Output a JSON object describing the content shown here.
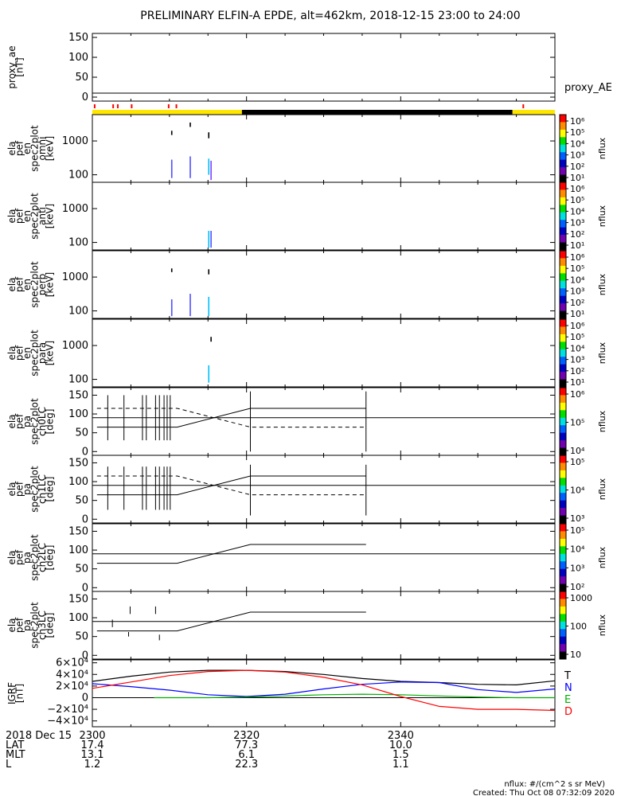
{
  "title": "PRELIMINARY ELFIN-A EPDE, alt=462km, 2018-12-15 23:00 to 24:00",
  "chart_data": {
    "type": "line",
    "time_ticks": [
      "2300",
      "2320",
      "2340"
    ],
    "ae_panel": {
      "ylabel": [
        "proxy_ae",
        "[nT]"
      ],
      "yticks": [
        "150",
        "100",
        "50",
        "0"
      ],
      "ylim": [
        -10,
        160
      ],
      "series_label": "proxy_AE",
      "value": 10,
      "red_marks_minutes": [
        0.3,
        2.7,
        3.3,
        5.1,
        9.9,
        10.9,
        55.9
      ],
      "status_bar": [
        {
          "from": 0,
          "to": 19.4,
          "color": "#ffe600"
        },
        {
          "from": 19.4,
          "to": 54.5,
          "color": "#000000"
        },
        {
          "from": 54.5,
          "to": 60,
          "color": "#ffe600"
        }
      ]
    },
    "spectrogram_panels": [
      {
        "ylabel": [
          "ela",
          "pef",
          "en",
          "spec2plot",
          "omni",
          "[keV]"
        ],
        "yticks": [
          "1000",
          "100"
        ],
        "cbar_ticks": [
          "10⁶",
          "10⁵",
          "10⁴",
          "10³",
          "10²",
          "10¹"
        ],
        "cbar_label": "nflux"
      },
      {
        "ylabel": [
          "ela",
          "pef",
          "en",
          "spec2plot",
          "anti",
          "[keV]"
        ],
        "yticks": [
          "1000",
          "100"
        ],
        "cbar_ticks": [
          "10⁶",
          "10⁵",
          "10⁴",
          "10³",
          "10²",
          "10¹"
        ],
        "cbar_label": "nflux"
      },
      {
        "ylabel": [
          "ela",
          "pef",
          "en",
          "spec2plot",
          "perp",
          "[keV]"
        ],
        "yticks": [
          "1000",
          "100"
        ],
        "cbar_ticks": [
          "10⁶",
          "10⁵",
          "10⁴",
          "10³",
          "10²",
          "10¹"
        ],
        "cbar_label": "nflux"
      },
      {
        "ylabel": [
          "ela",
          "pef",
          "en",
          "spec2plot",
          "para",
          "[keV]"
        ],
        "yticks": [
          "1000",
          "100"
        ],
        "cbar_ticks": [
          "10⁶",
          "10⁵",
          "10⁴",
          "10³",
          "10²",
          "10¹"
        ],
        "cbar_label": "nflux"
      }
    ],
    "pitch_panels": [
      {
        "ylabel": [
          "ela",
          "pef",
          "pa",
          "spec2plot",
          "ch0LC",
          "[deg]"
        ],
        "yticks": [
          "150",
          "100",
          "50",
          "0"
        ],
        "cbar_ticks": [
          "10⁶",
          "10⁵",
          "10⁴"
        ],
        "cbar_label": "nflux"
      },
      {
        "ylabel": [
          "ela",
          "pef",
          "pa",
          "spec2plot",
          "ch1LC",
          "[deg]"
        ],
        "yticks": [
          "150",
          "100",
          "50",
          "0"
        ],
        "cbar_ticks": [
          "10⁵",
          "10⁴",
          "10³"
        ],
        "cbar_label": "nflux"
      },
      {
        "ylabel": [
          "ela",
          "pef",
          "pa",
          "spec2plot",
          "ch2LC",
          "[deg]"
        ],
        "yticks": [
          "150",
          "100",
          "50",
          "0"
        ],
        "cbar_ticks": [
          "10⁵",
          "10⁴",
          "10³",
          "10²"
        ],
        "cbar_label": "nflux"
      },
      {
        "ylabel": [
          "ela",
          "pef",
          "pa",
          "spec2plot",
          "ch3LC",
          "[deg]"
        ],
        "yticks": [
          "150",
          "100",
          "50",
          "0"
        ],
        "cbar_ticks": [
          "1000",
          "100",
          "10"
        ],
        "cbar_label": "nflux"
      }
    ],
    "igrf_panel": {
      "ylabel": [
        "IGRF",
        "[nT]"
      ],
      "yticks": [
        "6×10⁴",
        "4×10⁴",
        "2×10⁴",
        "0",
        "−2×10⁴",
        "−4×10⁴"
      ],
      "ylim": [
        -50000,
        65000
      ],
      "series": [
        {
          "name": "T",
          "color": "#000000",
          "x": [
            0,
            5,
            10,
            15,
            20,
            25,
            30,
            35,
            40,
            45,
            50,
            55,
            60
          ],
          "values": [
            28000,
            37000,
            44000,
            47000,
            47000,
            45000,
            40000,
            33000,
            28000,
            26000,
            23000,
            22000,
            29000
          ]
        },
        {
          "name": "N",
          "color": "#0000ff",
          "x": [
            0,
            5,
            10,
            15,
            20,
            25,
            30,
            35,
            40,
            45,
            50,
            55,
            60
          ],
          "values": [
            24000,
            19000,
            13000,
            5000,
            2000,
            6000,
            15000,
            23000,
            27000,
            26000,
            14000,
            9000,
            15000
          ]
        },
        {
          "name": "E",
          "color": "#00b000",
          "x": [
            8,
            15,
            20,
            25,
            30,
            35,
            40,
            45,
            50,
            55,
            60
          ],
          "values": [
            0,
            0,
            1000,
            3000,
            5000,
            6000,
            5000,
            3000,
            1000,
            0,
            0
          ]
        },
        {
          "name": "D",
          "color": "#ff0000",
          "x": [
            0,
            5,
            10,
            15,
            20,
            25,
            30,
            35,
            40,
            45,
            50,
            55,
            60
          ],
          "values": [
            16000,
            27000,
            38000,
            45000,
            47000,
            44000,
            35000,
            22000,
            2000,
            -15000,
            -20000,
            -20000,
            -22000
          ]
        }
      ]
    }
  },
  "footer": {
    "orbit_rows": [
      {
        "label": "2018 Dec 15",
        "values": [
          "2300",
          "2320",
          "2340"
        ]
      },
      {
        "label": "LAT",
        "values": [
          "17.4",
          "77.3",
          "10.0"
        ]
      },
      {
        "label": "MLT",
        "values": [
          "13.1",
          "6.1",
          "1.5"
        ]
      },
      {
        "label": "L",
        "values": [
          "1.2",
          "22.3",
          "1.1"
        ]
      }
    ],
    "units_note": "nflux: #/(cm^2 s sr MeV)",
    "created": "Created: Thu Oct 08 07:32:09 2020"
  }
}
